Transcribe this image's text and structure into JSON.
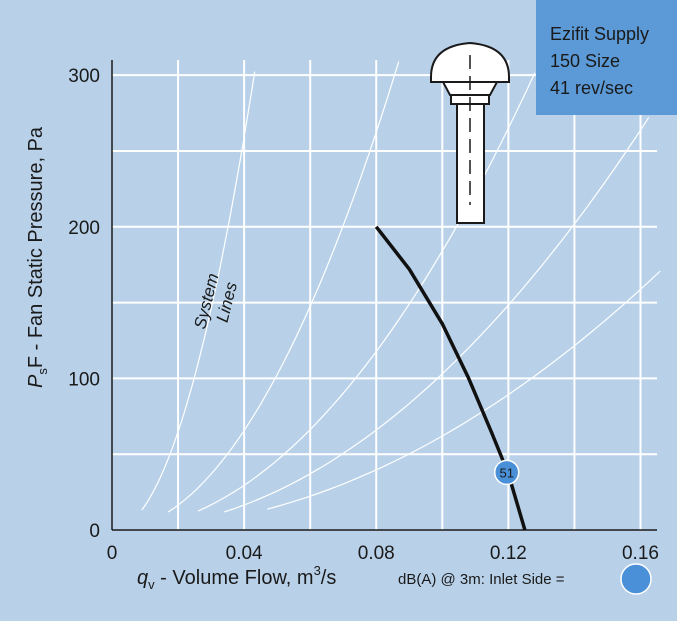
{
  "model_box": {
    "lines": [
      "Ezifit Supply",
      "150 Size",
      "41 rev/sec"
    ]
  },
  "chart_data": {
    "type": "line",
    "xlabel_italic": "q",
    "xlabel_sub": "v",
    "xlabel_rest": " - Volume Flow, m",
    "xlabel_sup": "3",
    "xlabel_end": "/s",
    "ylabel_italic": "P",
    "ylabel_sub": "s",
    "ylabel_rest": "F - Fan Static Pressure, Pa",
    "xlim": [
      0,
      0.165
    ],
    "ylim": [
      0,
      310
    ],
    "x_ticks": [
      "0",
      "0.04",
      "0.08",
      "0.12",
      "0.16"
    ],
    "x_tick_values": [
      0,
      0.04,
      0.08,
      0.12,
      0.16
    ],
    "y_ticks": [
      "0",
      "100",
      "200",
      "300"
    ],
    "y_tick_values": [
      0,
      100,
      200,
      300
    ],
    "grid_x": [
      0,
      0.02,
      0.04,
      0.06,
      0.08,
      0.1,
      0.12,
      0.14,
      0.16
    ],
    "grid_y": [
      0,
      50,
      100,
      150,
      200,
      250,
      300
    ],
    "grid": true,
    "fan_curve": {
      "x": [
        0.08,
        0.09,
        0.1,
        0.108,
        0.115,
        0.12,
        0.125
      ],
      "y": [
        200,
        172,
        136,
        100,
        64,
        37,
        0
      ]
    },
    "system_lines": [
      {
        "k": 162000,
        "x_start": 0.009,
        "x_end": 0.0432
      },
      {
        "k": 41000,
        "x_start": 0.017,
        "x_end": 0.0868
      },
      {
        "k": 18400,
        "x_start": 0.026,
        "x_end": 0.128
      },
      {
        "k": 10300,
        "x_start": 0.034,
        "x_end": 0.1625
      },
      {
        "k": 6200,
        "x_start": 0.047,
        "x_end": 0.166
      }
    ],
    "system_lines_label": [
      "System",
      "Lines"
    ],
    "sound_marker": {
      "x": 0.1195,
      "y": 38,
      "label": "51"
    },
    "legend_note": "dB(A) @ 3m:  Inlet Side ="
  }
}
